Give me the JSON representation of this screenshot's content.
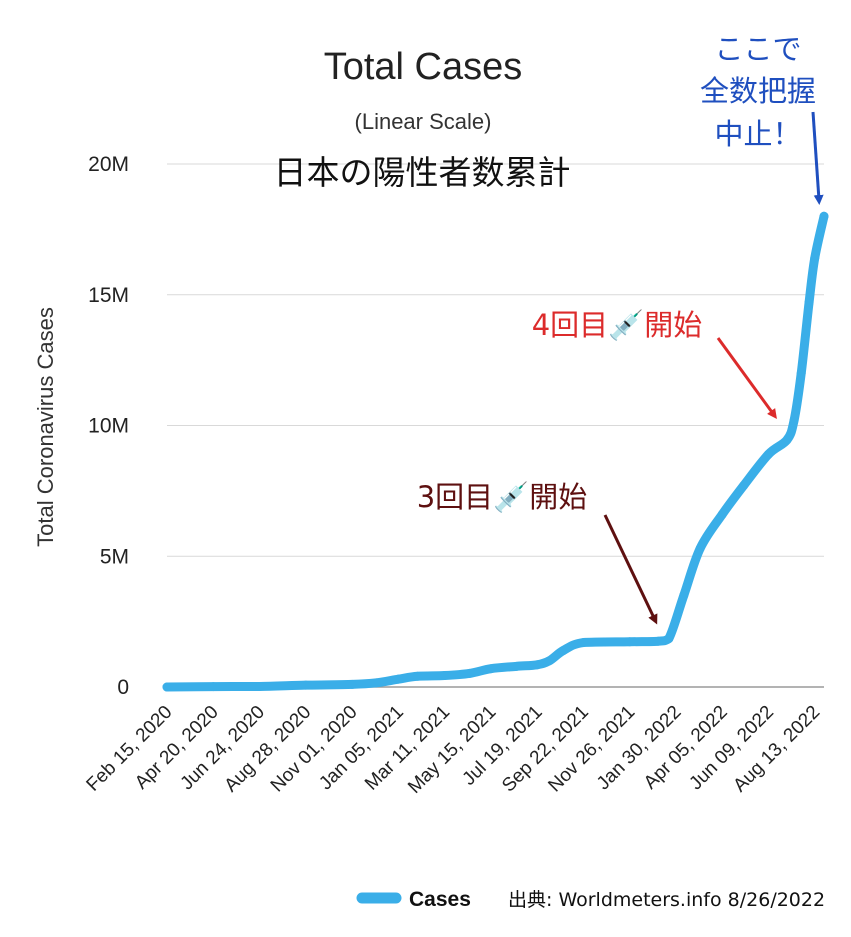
{
  "colors": {
    "series": "#3aaee8",
    "grid": "#d9d9d9",
    "axis": "#222222",
    "ann_stop": "#1f4fbf",
    "ann_4th": "#dc2b2b",
    "ann_3rd": "#5e1010"
  },
  "chart_data": {
    "type": "line",
    "title": "Total Cases",
    "subtitle": "(Linear Scale)",
    "title_jp": "日本の陽性者数累計",
    "ylabel": "Total Coronavirus Cases",
    "xlabel": "",
    "ylim": [
      0,
      20000000
    ],
    "yticks": [
      0,
      5000000,
      10000000,
      15000000,
      20000000
    ],
    "ytick_labels": [
      "0",
      "5M",
      "10M",
      "15M",
      "20M"
    ],
    "xlim": [
      "2020-02-15",
      "2022-08-26"
    ],
    "xtick_labels": [
      "Feb 15, 2020",
      "Apr 20, 2020",
      "Jun 24, 2020",
      "Aug 28, 2020",
      "Nov 01, 2020",
      "Jan 05, 2021",
      "Mar 11, 2021",
      "May 15, 2021",
      "Jul 19, 2021",
      "Sep 22, 2021",
      "Nov 26, 2021",
      "Jan 30, 2022",
      "Apr 05, 2022",
      "Jun 09, 2022",
      "Aug 13, 2022"
    ],
    "xtick_dates": [
      "2020-02-15",
      "2020-04-20",
      "2020-06-24",
      "2020-08-28",
      "2020-11-01",
      "2021-01-05",
      "2021-03-11",
      "2021-05-15",
      "2021-07-19",
      "2021-09-22",
      "2021-11-26",
      "2022-01-30",
      "2022-04-05",
      "2022-06-09",
      "2022-08-13"
    ],
    "grid": true,
    "legend_position": "bottom-right",
    "series": [
      {
        "name": "Cases",
        "x": [
          "2020-02-15",
          "2020-04-20",
          "2020-06-24",
          "2020-08-28",
          "2020-11-01",
          "2020-12-05",
          "2021-01-05",
          "2021-02-01",
          "2021-03-11",
          "2021-04-15",
          "2021-05-15",
          "2021-06-20",
          "2021-07-19",
          "2021-08-05",
          "2021-08-25",
          "2021-09-22",
          "2021-11-26",
          "2022-01-05",
          "2022-01-20",
          "2022-02-10",
          "2022-03-05",
          "2022-04-05",
          "2022-05-05",
          "2022-06-09",
          "2022-07-05",
          "2022-07-15",
          "2022-07-25",
          "2022-08-05",
          "2022-08-13",
          "2022-08-26"
        ],
        "y": [
          0,
          15000,
          20000,
          70000,
          100000,
          160000,
          300000,
          410000,
          440000,
          520000,
          700000,
          790000,
          850000,
          1000000,
          1400000,
          1700000,
          1730000,
          1750000,
          1850000,
          3500000,
          5300000,
          6600000,
          7700000,
          8900000,
          9450000,
          10200000,
          12000000,
          14700000,
          16400000,
          18000000
        ]
      }
    ],
    "annotations": [
      {
        "text_lines": [
          "ここで",
          "全数把握",
          "中止！"
        ],
        "target": [
          "2022-08-26",
          18000000
        ],
        "color": "ann_stop"
      },
      {
        "text": "4回目💉開始",
        "target": [
          "2022-07-05",
          9600000
        ],
        "color": "ann_4th"
      },
      {
        "text": "3回目💉開始",
        "target": [
          "2022-01-20",
          1800000
        ],
        "color": "ann_3rd"
      }
    ],
    "source": "出典: Worldmeters.info 8/26/2022"
  }
}
